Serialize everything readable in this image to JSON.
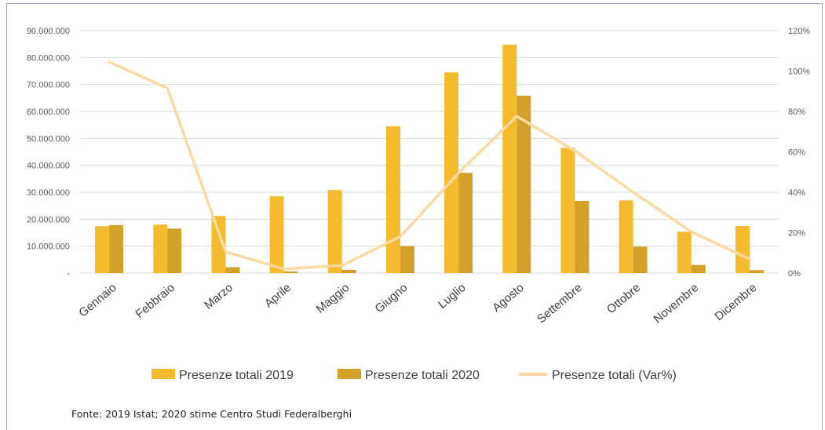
{
  "colors": {
    "series_2019": "#f4bb2e",
    "series_2020": "#d3a02a",
    "series_var": "#fcd9a0",
    "grid": "#d9d9d9"
  },
  "chart_data": {
    "type": "bar",
    "categories": [
      "Gennaio",
      "Febbraio",
      "Marzo",
      "Aprile",
      "Maggio",
      "Giugno",
      "Luglio",
      "Agosto",
      "Settembre",
      "Ottobre",
      "Novembre",
      "Dicembre"
    ],
    "series": [
      {
        "name": "Presenze totali 2019",
        "kind": "bar",
        "axis": "left",
        "values": [
          17400000,
          18000000,
          21200000,
          28500000,
          30800000,
          54500000,
          74500000,
          84800000,
          46500000,
          27000000,
          15300000,
          17500000
        ]
      },
      {
        "name": "Presenze totali 2020",
        "kind": "bar",
        "axis": "left",
        "values": [
          17800000,
          16500000,
          2200000,
          600000,
          1200000,
          10000000,
          37200000,
          65800000,
          26800000,
          9800000,
          3000000,
          1100000
        ]
      },
      {
        "name": "Presenze totali (Var%)",
        "kind": "line",
        "axis": "right",
        "values": [
          104.5,
          91.5,
          10.5,
          2,
          3.8,
          18,
          49.5,
          77.6,
          60.5,
          40,
          20.4,
          7
        ]
      }
    ],
    "left_axis": {
      "min": 0,
      "max": 90000000,
      "ticks": [
        "-",
        "10.000.000",
        "20.000.000",
        "30.000.000",
        "40.000.000",
        "50.000.000",
        "60.000.000",
        "70.000.000",
        "80.000.000",
        "90.000.000"
      ]
    },
    "right_axis": {
      "min": 0,
      "max": 120,
      "ticks": [
        "0%",
        "20%",
        "40%",
        "60%",
        "80%",
        "100%",
        "120%"
      ]
    },
    "grid": true,
    "legend_position": "bottom"
  },
  "source_note": "Fonte: 2019 Istat; 2020 stime Centro Studi Federalberghi"
}
